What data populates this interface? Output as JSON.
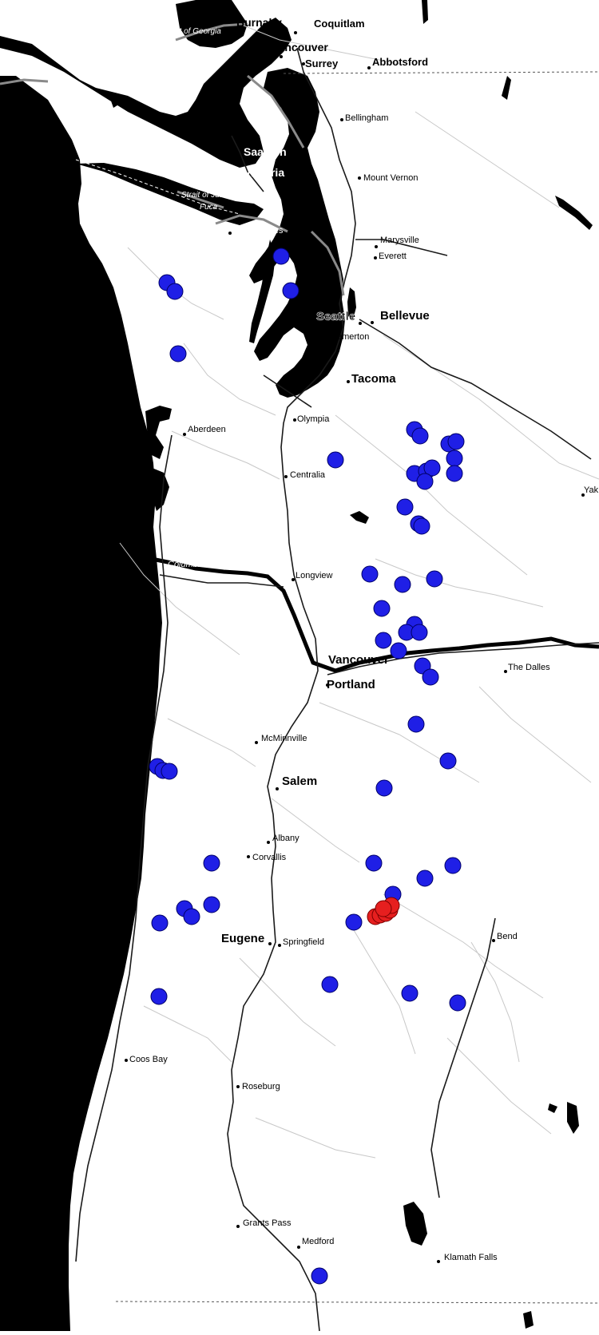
{
  "map": {
    "labels": {
      "burnaby": "Burnaby",
      "coquitlam": "Coquitlam",
      "vancouver_bc": "Vancouver",
      "surrey": "Surrey",
      "abbotsford": "Abbotsford",
      "strait_of_georgia": "Strait of Georgia",
      "bellingham": "Bellingham",
      "saanich": "Saanich",
      "victoria": "Victoria",
      "mount_vernon": "Mount Vernon",
      "strait_juan_de_fuca_1": "Strait of Juan de",
      "strait_juan_de_fuca_2": "Fuca",
      "port_angeles": "Port Angeles",
      "marysville": "Marysville",
      "everett": "Everett",
      "seattle": "Seattle",
      "bellevue": "Bellevue",
      "bremerton": "Bremerton",
      "tacoma": "Tacoma",
      "aberdeen": "Aberdeen",
      "olympia": "Olympia",
      "centralia": "Centralia",
      "yakima": "Yak",
      "columbia_river": "Columbia River",
      "longview": "Longview",
      "vancouver_wa": "Vancouver",
      "portland": "Portland",
      "the_dalles": "The Dalles",
      "mcminnville": "McMinnville",
      "salem": "Salem",
      "albany": "Albany",
      "corvallis": "Corvallis",
      "eugene": "Eugene",
      "springfield": "Springfield",
      "bend": "Bend",
      "coos_bay": "Coos Bay",
      "roseburg": "Roseburg",
      "grants_pass": "Grants Pass",
      "medford": "Medford",
      "klamath_falls": "Klamath Falls"
    },
    "colors": {
      "land": "#ffffff",
      "water": "#000000",
      "road": "#1a1a1a",
      "minor_road": "#bdbdbd",
      "blue_marker": "#1f1fe6",
      "red_marker": "#e61f1f"
    },
    "marker_icon": "circle-marker-icon"
  }
}
